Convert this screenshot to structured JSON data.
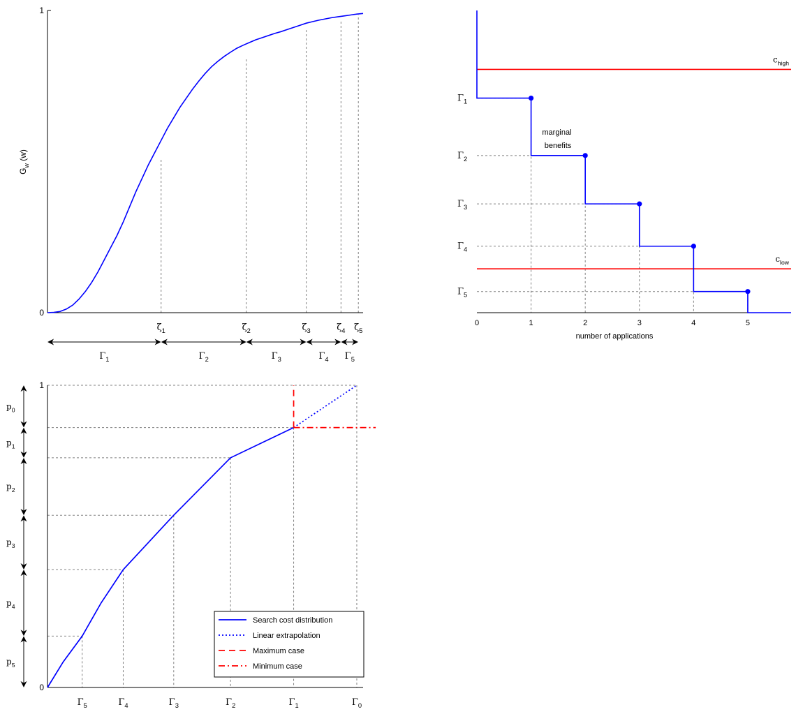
{
  "chart_data": [
    {
      "id": "cdf",
      "type": "line",
      "ylabel": "G",
      "ylabel_sub": "w",
      "ylabel_suffix": " (w)",
      "xlim": [
        0,
        1
      ],
      "ylim": [
        0,
        1
      ],
      "ytick_labels": [
        "0",
        "1"
      ],
      "series": [
        {
          "x": [
            0,
            0.02,
            0.04,
            0.06,
            0.08,
            0.1,
            0.12,
            0.14,
            0.16,
            0.18,
            0.2,
            0.22,
            0.24,
            0.26,
            0.28,
            0.3,
            0.32,
            0.34,
            0.36,
            0.38,
            0.4,
            0.42,
            0.44,
            0.46,
            0.48,
            0.5,
            0.52,
            0.54,
            0.56,
            0.58,
            0.6,
            0.62,
            0.64,
            0.66,
            0.68,
            0.7,
            0.72,
            0.74,
            0.76,
            0.78,
            0.8,
            0.82,
            0.84,
            0.86,
            0.88,
            0.9,
            0.92,
            0.94,
            0.96,
            0.98,
            1.0
          ],
          "y": [
            0,
            0.001,
            0.004,
            0.012,
            0.025,
            0.045,
            0.07,
            0.1,
            0.135,
            0.175,
            0.215,
            0.255,
            0.3,
            0.35,
            0.4,
            0.445,
            0.49,
            0.53,
            0.57,
            0.61,
            0.645,
            0.68,
            0.71,
            0.74,
            0.767,
            0.792,
            0.814,
            0.832,
            0.848,
            0.862,
            0.875,
            0.885,
            0.894,
            0.903,
            0.91,
            0.917,
            0.924,
            0.93,
            0.937,
            0.944,
            0.951,
            0.958,
            0.963,
            0.968,
            0.972,
            0.976,
            0.979,
            0.982,
            0.985,
            0.988,
            0.99
          ]
        }
      ],
      "zeta_points": [
        {
          "label": "ζ",
          "sub": "1",
          "x": 0.36,
          "y": 0.51
        },
        {
          "label": "ζ",
          "sub": "2",
          "x": 0.63,
          "y": 0.84
        },
        {
          "label": "ζ",
          "sub": "3",
          "x": 0.82,
          "y": 0.935
        },
        {
          "label": "ζ",
          "sub": "4",
          "x": 0.93,
          "y": 0.97
        },
        {
          "label": "ζ",
          "sub": "5",
          "x": 0.985,
          "y": 0.985
        }
      ],
      "gamma_intervals": [
        {
          "label": "Γ",
          "sub": "1",
          "from": 0,
          "to": 0.36
        },
        {
          "label": "Γ",
          "sub": "2",
          "from": 0.36,
          "to": 0.63
        },
        {
          "label": "Γ",
          "sub": "3",
          "from": 0.63,
          "to": 0.82
        },
        {
          "label": "Γ",
          "sub": "4",
          "from": 0.82,
          "to": 0.93
        },
        {
          "label": "Γ",
          "sub": "5",
          "from": 0.93,
          "to": 0.985
        }
      ]
    },
    {
      "id": "benefits",
      "type": "line",
      "xlabel": "number of applications",
      "xlim": [
        0,
        5.8
      ],
      "ylim": [
        0,
        1
      ],
      "xticks": [
        0,
        1,
        2,
        3,
        4,
        5
      ],
      "xtick_labels": [
        "0",
        "1",
        "2",
        "3",
        "4",
        "5"
      ],
      "steps": [
        {
          "x": 1,
          "value": 0.71,
          "label": "Γ",
          "sub": "1"
        },
        {
          "x": 2,
          "value": 0.52,
          "label": "Γ",
          "sub": "2"
        },
        {
          "x": 3,
          "value": 0.36,
          "label": "Γ",
          "sub": "3"
        },
        {
          "x": 4,
          "value": 0.22,
          "label": "Γ",
          "sub": "4"
        },
        {
          "x": 5,
          "value": 0.07,
          "label": "Γ",
          "sub": "5"
        }
      ],
      "initial_value": 1.0,
      "final_value": 0,
      "costs": [
        {
          "label": "c",
          "sub": "high",
          "value": 0.805,
          "color": "#ff0000"
        },
        {
          "label": "c",
          "sub": "low",
          "value": 0.145,
          "color": "#ff0000"
        }
      ],
      "annotation": [
        "marginal",
        "benefits"
      ]
    },
    {
      "id": "search",
      "type": "line",
      "xlim": [
        0,
        1
      ],
      "ylim": [
        0,
        1
      ],
      "ytick_labels": [
        "0",
        "1"
      ],
      "gamma_ticks": [
        {
          "label": "Γ",
          "sub": "5",
          "x": 0.11,
          "y": 0.17
        },
        {
          "label": "Γ",
          "sub": "4",
          "x": 0.24,
          "y": 0.39
        },
        {
          "label": "Γ",
          "sub": "3",
          "x": 0.4,
          "y": 0.57
        },
        {
          "label": "Γ",
          "sub": "2",
          "x": 0.58,
          "y": 0.76
        },
        {
          "label": "Γ",
          "sub": "1",
          "x": 0.78,
          "y": 0.86
        },
        {
          "label": "Γ",
          "sub": "0",
          "x": 0.98,
          "y": 1.0
        }
      ],
      "p_intervals": [
        {
          "label": "p",
          "sub": "0",
          "from": 1.0,
          "to": 0.86
        },
        {
          "label": "p",
          "sub": "1",
          "from": 0.86,
          "to": 0.76
        },
        {
          "label": "p",
          "sub": "2",
          "from": 0.76,
          "to": 0.57
        },
        {
          "label": "p",
          "sub": "3",
          "from": 0.57,
          "to": 0.39
        },
        {
          "label": "p",
          "sub": "4",
          "from": 0.39,
          "to": 0.17
        },
        {
          "label": "p",
          "sub": "5",
          "from": 0.17,
          "to": 0
        }
      ],
      "series": [
        {
          "name": "Search cost distribution",
          "style": "solid",
          "color": "#0000ff",
          "x": [
            0,
            0.05,
            0.11,
            0.17,
            0.24,
            0.32,
            0.4,
            0.49,
            0.58,
            0.68,
            0.78
          ],
          "y": [
            0,
            0.085,
            0.17,
            0.28,
            0.39,
            0.48,
            0.57,
            0.665,
            0.76,
            0.81,
            0.86
          ]
        },
        {
          "name": "Linear extrapolation",
          "style": "dotted",
          "color": "#0000ff",
          "x": [
            0.78,
            0.98
          ],
          "y": [
            0.86,
            1.0
          ]
        },
        {
          "name": "Maximum case",
          "style": "dashed",
          "color": "#ff0000",
          "x": [
            0.78,
            0.78
          ],
          "y": [
            0.86,
            1.0
          ]
        },
        {
          "name": "Minimum case",
          "style": "dashdot",
          "color": "#ff0000",
          "x": [
            0.78,
            1.04
          ],
          "y": [
            0.86,
            0.86
          ]
        }
      ]
    }
  ]
}
